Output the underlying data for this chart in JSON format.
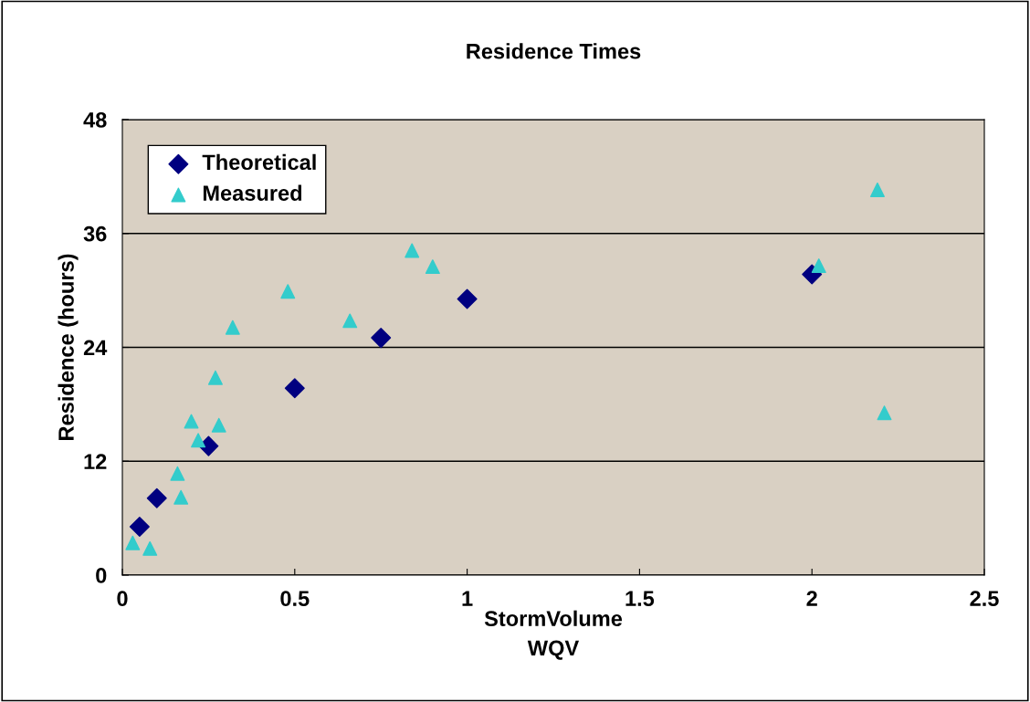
{
  "chart_data": {
    "type": "scatter",
    "title": "Residence Times",
    "xlabel": "StormVolume\nWQV",
    "ylabel": "Residence (hours)",
    "xlim": [
      0,
      2.5
    ],
    "xticks": [
      0,
      0.5,
      1,
      1.5,
      2,
      2.5
    ],
    "ylim": [
      0,
      48
    ],
    "yticks": [
      0,
      12,
      24,
      36,
      48
    ],
    "grid": "y",
    "legend": "top left",
    "series": [
      {
        "name": "Theoretical",
        "color": "#000080",
        "marker": "diamond",
        "x": [
          0.05,
          0.1,
          0.25,
          0.5,
          0.75,
          1.0,
          2.0
        ],
        "values": [
          5.1,
          8.1,
          13.6,
          19.7,
          25.0,
          29.1,
          31.7
        ]
      },
      {
        "name": "Measured",
        "color": "#33cccc",
        "marker": "triangle",
        "x": [
          0.03,
          0.08,
          0.16,
          0.17,
          0.2,
          0.22,
          0.27,
          0.28,
          0.32,
          0.48,
          0.66,
          0.84,
          0.9,
          2.02,
          2.19,
          2.21
        ],
        "values": [
          3.4,
          2.8,
          10.7,
          8.2,
          16.2,
          14.2,
          20.8,
          15.8,
          26.1,
          29.9,
          26.8,
          34.2,
          32.5,
          32.6,
          40.6,
          17.1
        ]
      }
    ]
  }
}
